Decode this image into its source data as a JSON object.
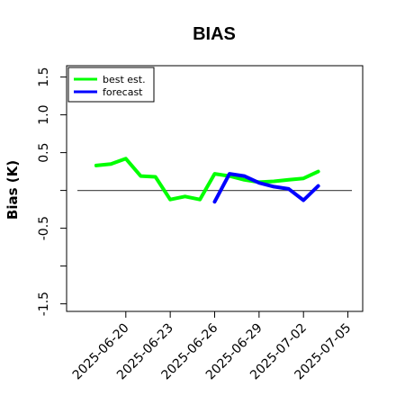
{
  "chart_data": {
    "type": "line",
    "title": "BIAS",
    "xlabel": "",
    "ylabel": "Bias (K)",
    "ylim": [
      -1.6,
      1.65
    ],
    "xlim": [
      "2025-06-16",
      "2025-07-06"
    ],
    "yticks": [
      -1.5,
      -1.0,
      -0.5,
      0.0,
      0.5,
      1.0,
      1.5
    ],
    "ytick_labels": [
      "-1.5",
      "",
      "-0.5",
      "",
      "0.5",
      "1.0",
      "1.5"
    ],
    "xticks": [
      "2025-06-20",
      "2025-06-23",
      "2025-06-26",
      "2025-06-29",
      "2025-07-02",
      "2025-07-05"
    ],
    "xtick_colors": [
      "#000000",
      "#000000",
      "#228b22",
      "#000000",
      "#000000",
      "#000000"
    ],
    "reference_line": 0.0,
    "legend": {
      "position": "top-left",
      "entries": [
        "best est.",
        "forecast"
      ]
    },
    "series": [
      {
        "name": "best est.",
        "color": "#00ff00",
        "x": [
          "2025-06-18",
          "2025-06-19",
          "2025-06-20",
          "2025-06-21",
          "2025-06-22",
          "2025-06-23",
          "2025-06-24",
          "2025-06-25",
          "2025-06-26",
          "2025-06-27",
          "2025-06-28",
          "2025-06-29",
          "2025-06-30",
          "2025-07-01",
          "2025-07-02",
          "2025-07-03"
        ],
        "y": [
          0.33,
          0.35,
          0.42,
          0.19,
          0.18,
          -0.12,
          -0.08,
          -0.12,
          0.22,
          0.19,
          0.14,
          0.11,
          0.12,
          0.14,
          0.16,
          0.25
        ]
      },
      {
        "name": "forecast",
        "color": "#0000ff",
        "x": [
          "2025-06-26",
          "2025-06-27",
          "2025-06-28",
          "2025-06-29",
          "2025-06-30",
          "2025-07-01",
          "2025-07-02",
          "2025-07-03"
        ],
        "y": [
          -0.15,
          0.22,
          0.19,
          0.1,
          0.05,
          0.02,
          -0.13,
          0.06
        ]
      }
    ]
  }
}
